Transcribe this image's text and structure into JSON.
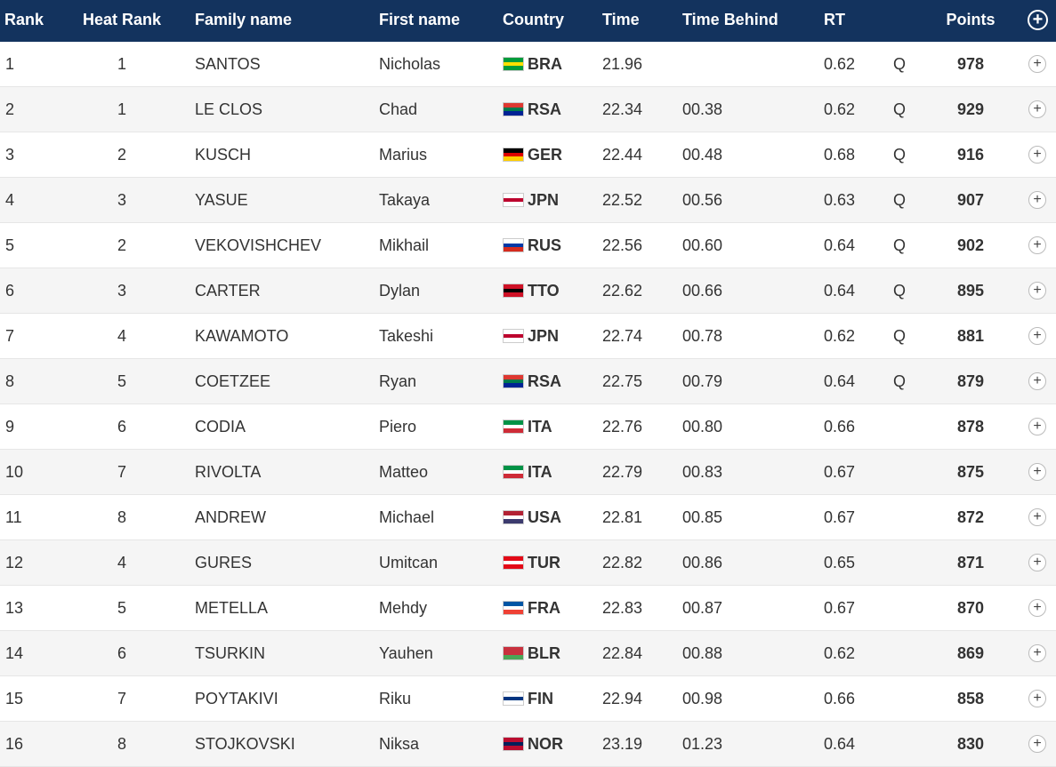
{
  "table": {
    "header": {
      "rank": "Rank",
      "heat_rank": "Heat Rank",
      "family_name": "Family name",
      "first_name": "First name",
      "country": "Country",
      "time": "Time",
      "time_behind": "Time Behind",
      "rt": "RT",
      "points": "Points"
    },
    "rows": [
      {
        "rank": "1",
        "heat_rank": "1",
        "family_name": "SANTOS",
        "first_name": "Nicholas",
        "flag": [
          "#009c3b",
          "#ffdf00",
          "#009c3b"
        ],
        "country": "BRA",
        "time": "21.96",
        "time_behind": null,
        "rt": "0.62",
        "qualifier": "Q",
        "points": "978"
      },
      {
        "rank": "2",
        "heat_rank": "1",
        "family_name": "LE CLOS",
        "first_name": "Chad",
        "flag": [
          "#de3831",
          "#007a4d",
          "#002395"
        ],
        "country": "RSA",
        "time": "22.34",
        "time_behind": "00.38",
        "rt": "0.62",
        "qualifier": "Q",
        "points": "929"
      },
      {
        "rank": "3",
        "heat_rank": "2",
        "family_name": "KUSCH",
        "first_name": "Marius",
        "flag": [
          "#000000",
          "#dd0000",
          "#ffce00"
        ],
        "country": "GER",
        "time": "22.44",
        "time_behind": "00.48",
        "rt": "0.68",
        "qualifier": "Q",
        "points": "916"
      },
      {
        "rank": "4",
        "heat_rank": "3",
        "family_name": "YASUE",
        "first_name": "Takaya",
        "flag": [
          "#ffffff",
          "#bc002d",
          "#ffffff"
        ],
        "country": "JPN",
        "time": "22.52",
        "time_behind": "00.56",
        "rt": "0.63",
        "qualifier": "Q",
        "points": "907"
      },
      {
        "rank": "5",
        "heat_rank": "2",
        "family_name": "VEKOVISHCHEV",
        "first_name": "Mikhail",
        "flag": [
          "#ffffff",
          "#0039a6",
          "#d52b1e"
        ],
        "country": "RUS",
        "time": "22.56",
        "time_behind": "00.60",
        "rt": "0.64",
        "qualifier": "Q",
        "points": "902"
      },
      {
        "rank": "6",
        "heat_rank": "3",
        "family_name": "CARTER",
        "first_name": "Dylan",
        "flag": [
          "#ce1126",
          "#000000",
          "#ce1126"
        ],
        "country": "TTO",
        "time": "22.62",
        "time_behind": "00.66",
        "rt": "0.64",
        "qualifier": "Q",
        "points": "895"
      },
      {
        "rank": "7",
        "heat_rank": "4",
        "family_name": "KAWAMOTO",
        "first_name": "Takeshi",
        "flag": [
          "#ffffff",
          "#bc002d",
          "#ffffff"
        ],
        "country": "JPN",
        "time": "22.74",
        "time_behind": "00.78",
        "rt": "0.62",
        "qualifier": "Q",
        "points": "881"
      },
      {
        "rank": "8",
        "heat_rank": "5",
        "family_name": "COETZEE",
        "first_name": "Ryan",
        "flag": [
          "#de3831",
          "#007a4d",
          "#002395"
        ],
        "country": "RSA",
        "time": "22.75",
        "time_behind": "00.79",
        "rt": "0.64",
        "qualifier": "Q",
        "points": "879"
      },
      {
        "rank": "9",
        "heat_rank": "6",
        "family_name": "CODIA",
        "first_name": "Piero",
        "flag": [
          "#009246",
          "#ffffff",
          "#ce2b37"
        ],
        "country": "ITA",
        "time": "22.76",
        "time_behind": "00.80",
        "rt": "0.66",
        "qualifier": null,
        "points": "878"
      },
      {
        "rank": "10",
        "heat_rank": "7",
        "family_name": "RIVOLTA",
        "first_name": "Matteo",
        "flag": [
          "#009246",
          "#ffffff",
          "#ce2b37"
        ],
        "country": "ITA",
        "time": "22.79",
        "time_behind": "00.83",
        "rt": "0.67",
        "qualifier": null,
        "points": "875"
      },
      {
        "rank": "11",
        "heat_rank": "8",
        "family_name": "ANDREW",
        "first_name": "Michael",
        "flag": [
          "#b22234",
          "#ffffff",
          "#3c3b6e"
        ],
        "country": "USA",
        "time": "22.81",
        "time_behind": "00.85",
        "rt": "0.67",
        "qualifier": null,
        "points": "872"
      },
      {
        "rank": "12",
        "heat_rank": "4",
        "family_name": "GURES",
        "first_name": "Umitcan",
        "flag": [
          "#e30a17",
          "#ffffff",
          "#e30a17"
        ],
        "country": "TUR",
        "time": "22.82",
        "time_behind": "00.86",
        "rt": "0.65",
        "qualifier": null,
        "points": "871"
      },
      {
        "rank": "13",
        "heat_rank": "5",
        "family_name": "METELLA",
        "first_name": "Mehdy",
        "flag": [
          "#0055a4",
          "#ffffff",
          "#ef4135"
        ],
        "country": "FRA",
        "time": "22.83",
        "time_behind": "00.87",
        "rt": "0.67",
        "qualifier": null,
        "points": "870"
      },
      {
        "rank": "14",
        "heat_rank": "6",
        "family_name": "TSURKIN",
        "first_name": "Yauhen",
        "flag": [
          "#c8313e",
          "#c8313e",
          "#4aa657"
        ],
        "country": "BLR",
        "time": "22.84",
        "time_behind": "00.88",
        "rt": "0.62",
        "qualifier": null,
        "points": "869"
      },
      {
        "rank": "15",
        "heat_rank": "7",
        "family_name": "POYTAKIVI",
        "first_name": "Riku",
        "flag": [
          "#ffffff",
          "#003580",
          "#ffffff"
        ],
        "country": "FIN",
        "time": "22.94",
        "time_behind": "00.98",
        "rt": "0.66",
        "qualifier": null,
        "points": "858"
      },
      {
        "rank": "16",
        "heat_rank": "8",
        "family_name": "STOJKOVSKI",
        "first_name": "Niksa",
        "flag": [
          "#ba0c2f",
          "#00205b",
          "#ba0c2f"
        ],
        "country": "NOR",
        "time": "23.19",
        "time_behind": "01.23",
        "rt": "0.64",
        "qualifier": null,
        "points": "830"
      }
    ]
  }
}
